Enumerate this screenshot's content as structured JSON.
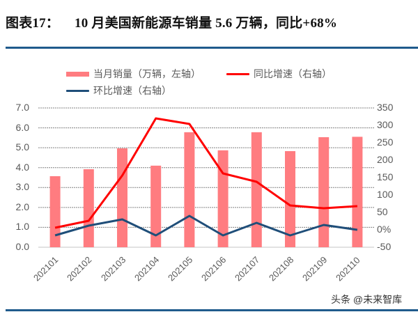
{
  "header": {
    "label": "图表17：",
    "title": "10 月美国新能源车销量 5.6 万辆，同比+68%"
  },
  "legend": [
    {
      "label": "当月销量（万辆，左轴）",
      "type": "bar",
      "color": "#ff7c80"
    },
    {
      "label": "同比增速（右轴）",
      "type": "line",
      "color": "#ff0000"
    },
    {
      "label": "环比增速（右轴）",
      "type": "line",
      "color": "#1f4e79"
    }
  ],
  "watermark": "头条 @未来智库",
  "colors": {
    "bar": "#ff7c80",
    "yoy": "#ff0000",
    "mom": "#1f4e79",
    "rule": "#1f5a8c",
    "grid": "#808080",
    "axis_text": "#595959"
  },
  "chart_data": {
    "type": "bar",
    "title": "10 月美国新能源车销量 5.6 万辆，同比+68%",
    "xlabel": "",
    "ylabel": "",
    "categories": [
      "202101",
      "202102",
      "202103",
      "202104",
      "202105",
      "202106",
      "202107",
      "202108",
      "202109",
      "202110"
    ],
    "series": [
      {
        "name": "当月销量（万辆，左轴）",
        "type": "bar",
        "axis": "left",
        "values": [
          3.57,
          3.92,
          4.97,
          4.1,
          5.78,
          4.87,
          5.78,
          4.83,
          5.53,
          5.55
        ]
      },
      {
        "name": "同比增速（右轴）",
        "type": "line",
        "axis": "right",
        "unit": "%",
        "values": [
          6,
          26,
          156,
          320,
          304,
          162,
          138,
          70,
          62,
          68
        ]
      },
      {
        "name": "环比增速（右轴）",
        "type": "line",
        "axis": "right",
        "unit": "%",
        "values": [
          -16,
          12,
          30,
          -16,
          40,
          -16,
          20,
          -16,
          14,
          0
        ]
      }
    ],
    "left_axis": {
      "ylim": [
        0,
        7
      ],
      "ticks": [
        "0.0",
        "1.0",
        "2.0",
        "3.0",
        "4.0",
        "5.0",
        "6.0",
        "7.0"
      ]
    },
    "right_axis": {
      "ylim": [
        -50,
        350
      ],
      "ticks": [
        "-50",
        "0%",
        "50",
        "100",
        "150",
        "200",
        "250",
        "300",
        "350"
      ]
    },
    "grid": true,
    "legend_position": "top"
  }
}
